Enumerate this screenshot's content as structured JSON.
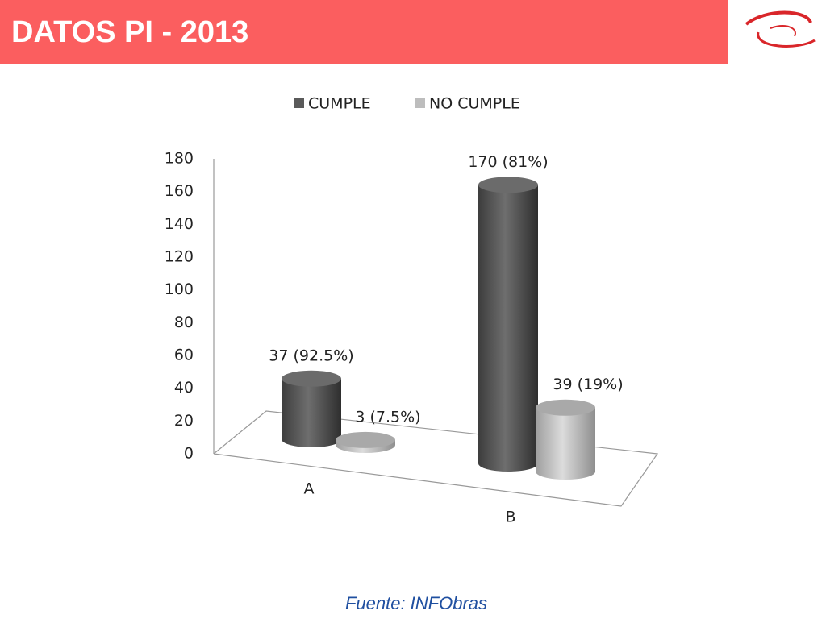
{
  "chart_data": {
    "type": "cylinder3d",
    "title": "DATOS PI - 2013",
    "categories": [
      "A",
      "B"
    ],
    "series": [
      {
        "name": "CUMPLE",
        "color": "#5a5a5a",
        "values": [
          37,
          170
        ],
        "value_labels": [
          "37 (92.5%)",
          "170 (81%)"
        ]
      },
      {
        "name": "NO CUMPLE",
        "color": "#bdbdbd",
        "values": [
          3,
          39
        ],
        "value_labels": [
          "3 (7.5%)",
          "39 (19%)"
        ]
      }
    ],
    "ylim": [
      0,
      180
    ],
    "yticks": [
      0,
      20,
      40,
      60,
      80,
      100,
      120,
      140,
      160,
      180
    ],
    "grid": false,
    "legend": "top"
  },
  "footer": {
    "source": "Fuente: INFObras"
  }
}
